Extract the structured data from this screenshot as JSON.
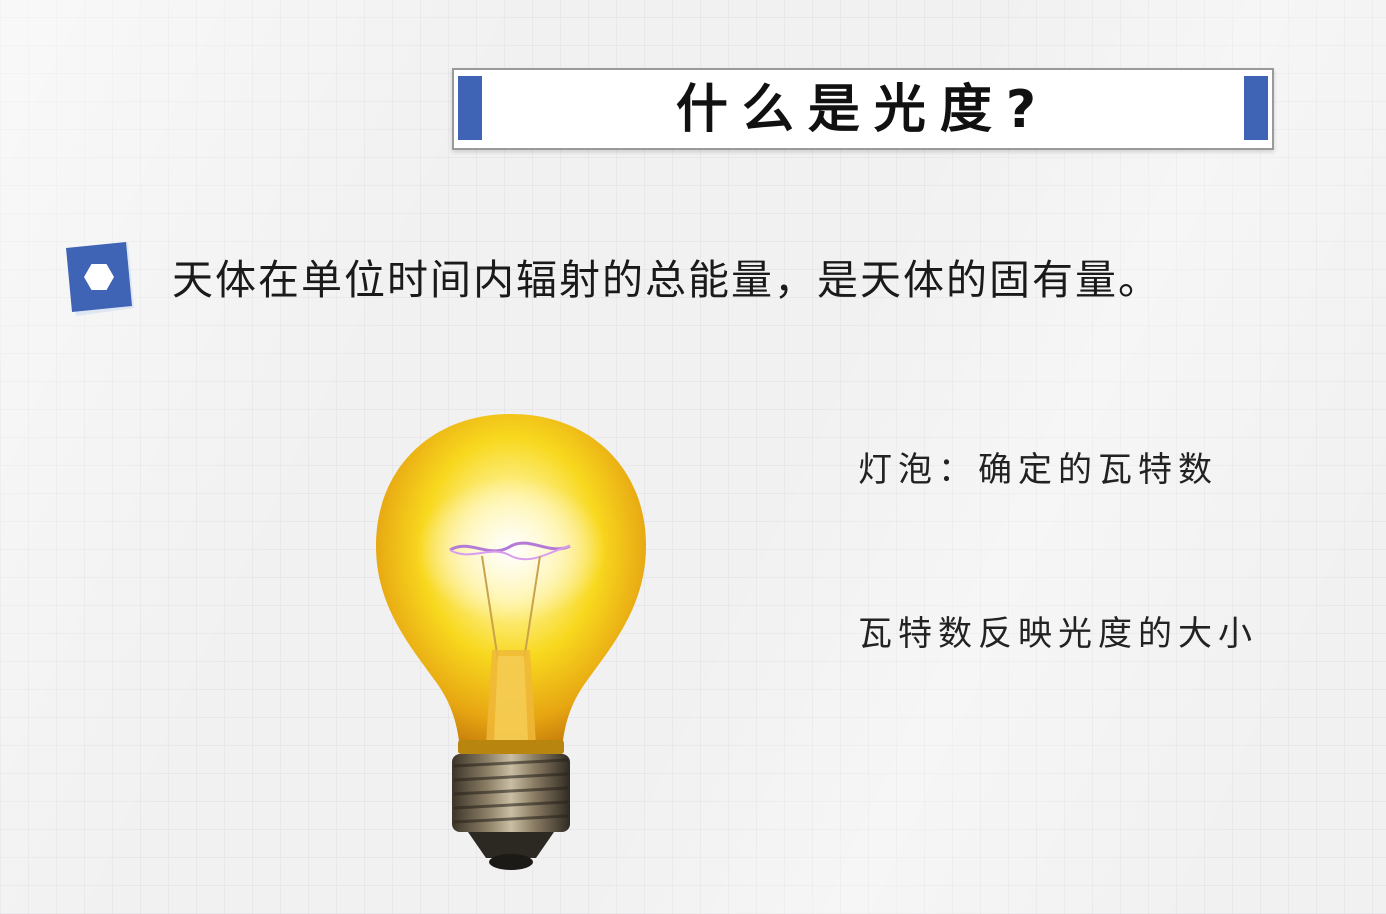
{
  "slide": {
    "title": "什么是光度?",
    "definition": "天体在单位时间内辐射的总能量，是天体的固有量。",
    "notes": [
      "灯泡：确定的瓦特数",
      "瓦特数反映光度的大小"
    ]
  },
  "colors": {
    "accent": "#3f63b5",
    "bulb_glow": "#f7d21a",
    "text": "#1a1a1a"
  },
  "icons": {
    "definition_bullet": "hexagon-bullet-icon",
    "illustration": "light-bulb"
  }
}
